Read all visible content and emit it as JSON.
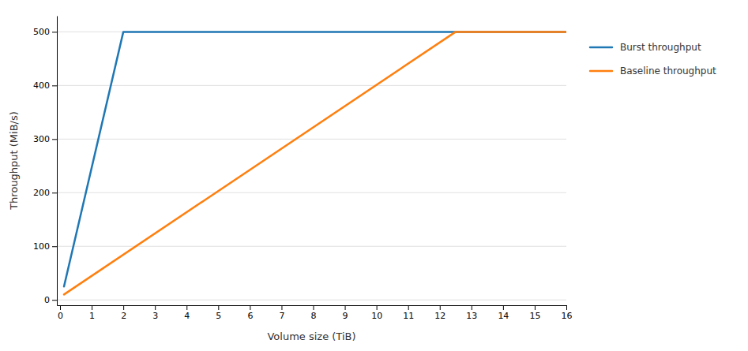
{
  "chart_data": {
    "type": "line",
    "xlabel": "Volume size (TiB)",
    "ylabel": "Throughput (MiB/s)",
    "series": [
      {
        "name": "Burst throughput",
        "x": [
          0.125,
          2,
          16
        ],
        "values": [
          25,
          500,
          500
        ]
      },
      {
        "name": "Baseline throughput",
        "x": [
          0.125,
          12.5,
          16
        ],
        "values": [
          10,
          500,
          500
        ]
      }
    ],
    "xlim": [
      -0.1,
      16
    ],
    "ylim": [
      -10,
      530
    ],
    "xticks": [
      0,
      1,
      2,
      3,
      4,
      5,
      6,
      7,
      8,
      9,
      10,
      11,
      12,
      13,
      14,
      15,
      16
    ],
    "yticks": [
      0,
      100,
      200,
      300,
      400,
      500
    ],
    "grid": "y",
    "legend": "right"
  }
}
